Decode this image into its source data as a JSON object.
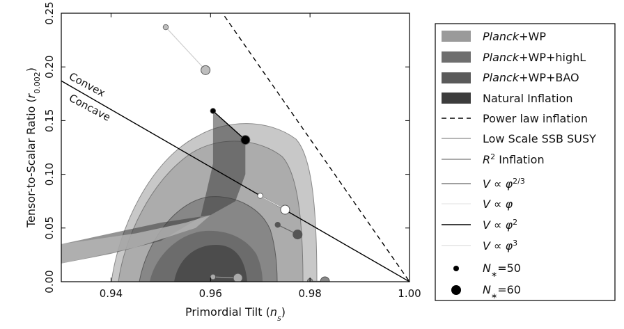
{
  "chart_data": {
    "type": "scatter",
    "xlabel": "Primordial Tilt (n_s)",
    "ylabel": "Tensor-to-Scalar Ratio (r_0.002)",
    "xlim": [
      0.93,
      1.0
    ],
    "ylim": [
      0.0,
      0.25
    ],
    "x_ticks": [
      "0.94",
      "0.96",
      "0.98",
      "1.00"
    ],
    "y_ticks": [
      "0.00",
      "0.05",
      "0.10",
      "0.15",
      "0.20",
      "0.25"
    ],
    "grid": false,
    "legend_position": "outside-right",
    "annotations": [
      "Convex",
      "Concave"
    ],
    "legend": [
      {
        "label": "Planck+WP",
        "kind": "patch",
        "color": "#9a9a9a"
      },
      {
        "label": "Planck+WP+highL",
        "kind": "patch",
        "color": "#6e6e6e"
      },
      {
        "label": "Planck+WP+BAO",
        "kind": "patch",
        "color": "#5a5a5a"
      },
      {
        "label": "Natural Inflation",
        "kind": "patch",
        "color": "#3c3c3c"
      },
      {
        "label": "Power law inflation",
        "kind": "dashed-line",
        "color": "#000000"
      },
      {
        "label": "Low Scale SSB SUSY",
        "kind": "line",
        "color": "#8a8a8a"
      },
      {
        "label": "R² Inflation",
        "kind": "line",
        "color": "#777777"
      },
      {
        "label": "V ∝ φ^(2/3)",
        "kind": "line",
        "color": "#666666"
      },
      {
        "label": "V ∝ φ",
        "kind": "line",
        "color": "#e6e6e6"
      },
      {
        "label": "V ∝ φ²",
        "kind": "line",
        "color": "#000000"
      },
      {
        "label": "V ∝ φ³",
        "kind": "line",
        "color": "#dddddd"
      },
      {
        "label": "N*=50",
        "kind": "small-dot",
        "color": "#000000"
      },
      {
        "label": "N*=60",
        "kind": "large-dot",
        "color": "#000000"
      }
    ],
    "series": [
      {
        "name": "Power law inflation",
        "x": [
          0.9609,
          1.0
        ],
        "y": [
          0.26,
          0.0
        ]
      },
      {
        "name": "Convex/Concave boundary",
        "x": [
          0.93,
          1.0
        ],
        "y": [
          0.187,
          0.0
        ]
      },
      {
        "name": "V ∝ φ³",
        "points": [
          {
            "x": 0.951,
            "y": 0.237
          },
          {
            "x": 0.959,
            "y": 0.197
          }
        ]
      },
      {
        "name": "V ∝ φ²",
        "points": [
          {
            "x": 0.9605,
            "y": 0.159
          },
          {
            "x": 0.967,
            "y": 0.132
          }
        ]
      },
      {
        "name": "V ∝ φ",
        "points": [
          {
            "x": 0.97,
            "y": 0.08
          },
          {
            "x": 0.975,
            "y": 0.067
          }
        ]
      },
      {
        "name": "V ∝ φ^(2/3)",
        "points": [
          {
            "x": 0.9735,
            "y": 0.053
          },
          {
            "x": 0.9775,
            "y": 0.044
          }
        ]
      },
      {
        "name": "R² Inflation",
        "points": [
          {
            "x": 0.9605,
            "y": 0.0045
          },
          {
            "x": 0.9655,
            "y": 0.0035
          }
        ]
      },
      {
        "name": "Low Scale SSB SUSY",
        "points": [
          {
            "x": 0.98,
            "y": 0.0005
          },
          {
            "x": 0.983,
            "y": 0.0003
          }
        ]
      }
    ],
    "natural_inflation_region": [
      [
        0.9605,
        0.159
      ],
      [
        0.967,
        0.132
      ],
      [
        0.967,
        0.1
      ],
      [
        0.965,
        0.075
      ],
      [
        0.96,
        0.062
      ],
      [
        0.95,
        0.055
      ],
      [
        0.94,
        0.045
      ],
      [
        0.93,
        0.035
      ],
      [
        0.93,
        0.017
      ],
      [
        0.94,
        0.026
      ],
      [
        0.95,
        0.038
      ],
      [
        0.958,
        0.06
      ],
      [
        0.9605,
        0.11
      ]
    ]
  }
}
